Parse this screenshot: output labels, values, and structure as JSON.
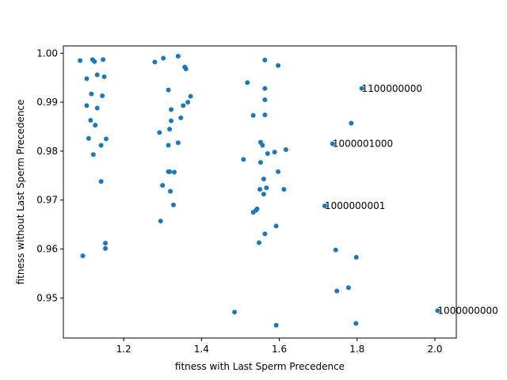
{
  "chart_data": {
    "type": "scatter",
    "title": "",
    "xlabel": "fitness with Last Sperm Precedence",
    "ylabel": "fitness without Last Sperm Precedence",
    "xlim": [
      1.045,
      2.055
    ],
    "ylim": [
      0.9418,
      1.0015
    ],
    "xticks": [
      1.2,
      1.4,
      1.6,
      1.8,
      2.0
    ],
    "xtick_labels": [
      "1.2",
      "1.4",
      "1.6",
      "1.8",
      "2.0"
    ],
    "yticks": [
      0.95,
      0.96,
      0.97,
      0.98,
      0.99,
      1.0
    ],
    "ytick_labels": [
      "0.95",
      "0.96",
      "0.97",
      "0.98",
      "0.99",
      "1.00"
    ],
    "grid": false,
    "marker_color": "#1f77b4",
    "points": [
      [
        1.088,
        0.9985
      ],
      [
        1.12,
        0.9987
      ],
      [
        1.125,
        0.9983
      ],
      [
        1.147,
        0.9987
      ],
      [
        1.132,
        0.9956
      ],
      [
        1.15,
        0.9952
      ],
      [
        1.105,
        0.9948
      ],
      [
        1.117,
        0.9917
      ],
      [
        1.145,
        0.9913
      ],
      [
        1.105,
        0.9893
      ],
      [
        1.132,
        0.9888
      ],
      [
        1.115,
        0.9863
      ],
      [
        1.127,
        0.9853
      ],
      [
        1.11,
        0.9826
      ],
      [
        1.155,
        0.9825
      ],
      [
        1.142,
        0.9812
      ],
      [
        1.122,
        0.9793
      ],
      [
        1.142,
        0.9738
      ],
      [
        1.095,
        0.9586
      ],
      [
        1.153,
        0.9612
      ],
      [
        1.153,
        0.9601
      ],
      [
        1.28,
        0.9982
      ],
      [
        1.302,
        0.999
      ],
      [
        1.34,
        0.9994
      ],
      [
        1.357,
        0.9972
      ],
      [
        1.36,
        0.9968
      ],
      [
        1.315,
        0.9925
      ],
      [
        1.372,
        0.9912
      ],
      [
        1.365,
        0.99
      ],
      [
        1.353,
        0.9893
      ],
      [
        1.322,
        0.9885
      ],
      [
        1.347,
        0.9868
      ],
      [
        1.322,
        0.9862
      ],
      [
        1.318,
        0.9845
      ],
      [
        1.292,
        0.9838
      ],
      [
        1.34,
        0.9817
      ],
      [
        1.315,
        0.9812
      ],
      [
        1.315,
        0.9758
      ],
      [
        1.318,
        0.9758
      ],
      [
        1.33,
        0.9757
      ],
      [
        1.3,
        0.973
      ],
      [
        1.32,
        0.9718
      ],
      [
        1.328,
        0.969
      ],
      [
        1.295,
        0.9657
      ],
      [
        1.563,
        0.9986
      ],
      [
        1.597,
        0.9975
      ],
      [
        1.518,
        0.994
      ],
      [
        1.563,
        0.9928
      ],
      [
        1.563,
        0.9905
      ],
      [
        1.533,
        0.9873
      ],
      [
        1.563,
        0.9874
      ],
      [
        1.552,
        0.9818
      ],
      [
        1.557,
        0.9812
      ],
      [
        1.617,
        0.9803
      ],
      [
        1.588,
        0.9798
      ],
      [
        1.57,
        0.9795
      ],
      [
        1.508,
        0.9783
      ],
      [
        1.552,
        0.9777
      ],
      [
        1.597,
        0.9758
      ],
      [
        1.56,
        0.9743
      ],
      [
        1.567,
        0.9725
      ],
      [
        1.55,
        0.9722
      ],
      [
        1.612,
        0.9722
      ],
      [
        1.56,
        0.9712
      ],
      [
        1.543,
        0.9682
      ],
      [
        1.54,
        0.9679
      ],
      [
        1.533,
        0.9675
      ],
      [
        1.592,
        0.9647
      ],
      [
        1.563,
        0.9631
      ],
      [
        1.548,
        0.9613
      ],
      [
        1.485,
        0.9471
      ],
      [
        1.592,
        0.9444
      ],
      [
        1.812,
        0.9928
      ],
      [
        1.785,
        0.9857
      ],
      [
        1.737,
        0.9815
      ],
      [
        1.717,
        0.9688
      ],
      [
        1.745,
        0.9598
      ],
      [
        1.798,
        0.9583
      ],
      [
        1.778,
        0.9521
      ],
      [
        1.748,
        0.9514
      ],
      [
        1.797,
        0.9448
      ],
      [
        2.007,
        0.9474
      ]
    ],
    "annotations": [
      {
        "text": "1100000000",
        "x": 1.812,
        "y": 0.9928
      },
      {
        "text": "1000001000",
        "x": 1.737,
        "y": 0.9815
      },
      {
        "text": "1000000001",
        "x": 1.717,
        "y": 0.9688
      },
      {
        "text": "1000000000",
        "x": 2.007,
        "y": 0.9474
      }
    ]
  }
}
